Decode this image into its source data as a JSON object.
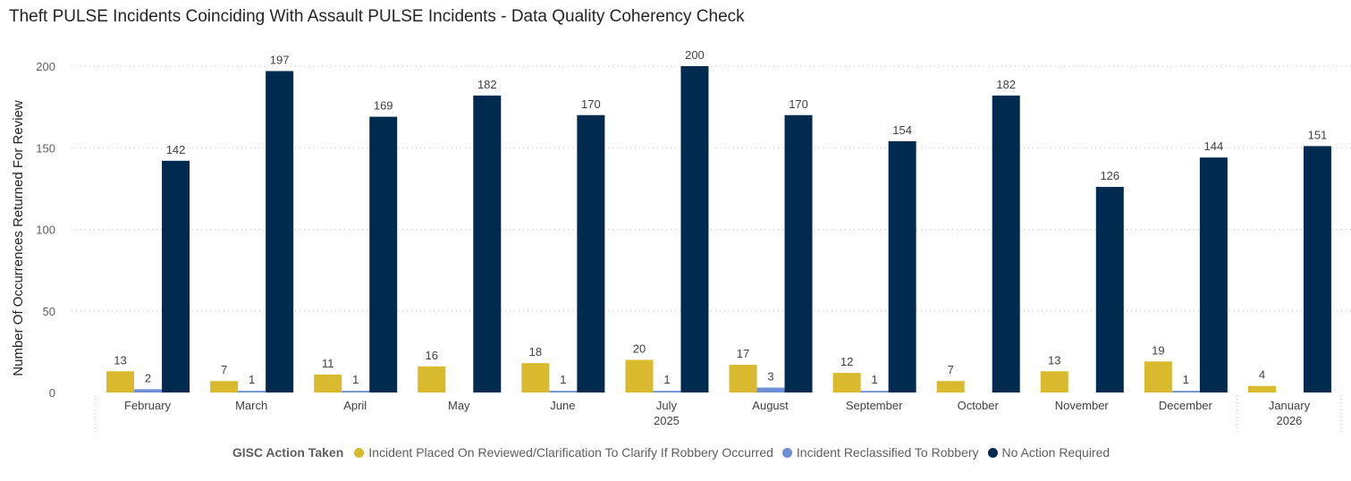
{
  "chart_data": {
    "type": "bar",
    "title": "Theft PULSE Incidents Coinciding With Assault PULSE Incidents - Data Quality Coherency Check",
    "ylabel": "Number Of Occurrences Returned For Review",
    "xlabel": "",
    "ylim": [
      0,
      200
    ],
    "yticks": [
      0,
      50,
      100,
      150,
      200
    ],
    "grid": true,
    "legend_position": "bottom",
    "legend_title": "GISC Action Taken",
    "categories": [
      "February",
      "March",
      "April",
      "May",
      "June",
      "July",
      "August",
      "September",
      "October",
      "November",
      "December",
      "January"
    ],
    "year_groups": [
      {
        "label": "2025",
        "from": 0,
        "to": 10
      },
      {
        "label": "2026",
        "from": 11,
        "to": 11
      }
    ],
    "series": [
      {
        "name": "Incident Placed On Reviewed/Clarification To Clarify If Robbery Occurred",
        "color": "#d9b92e",
        "values": [
          13,
          7,
          11,
          16,
          18,
          20,
          17,
          12,
          7,
          13,
          19,
          4
        ]
      },
      {
        "name": "Incident Reclassified To Robbery",
        "color": "#6e8fd6",
        "values": [
          2,
          1,
          1,
          null,
          1,
          1,
          3,
          1,
          null,
          null,
          1,
          null
        ]
      },
      {
        "name": "No Action Required",
        "color": "#002b4f",
        "values": [
          142,
          197,
          169,
          182,
          170,
          200,
          170,
          154,
          182,
          126,
          144,
          151
        ]
      }
    ]
  }
}
